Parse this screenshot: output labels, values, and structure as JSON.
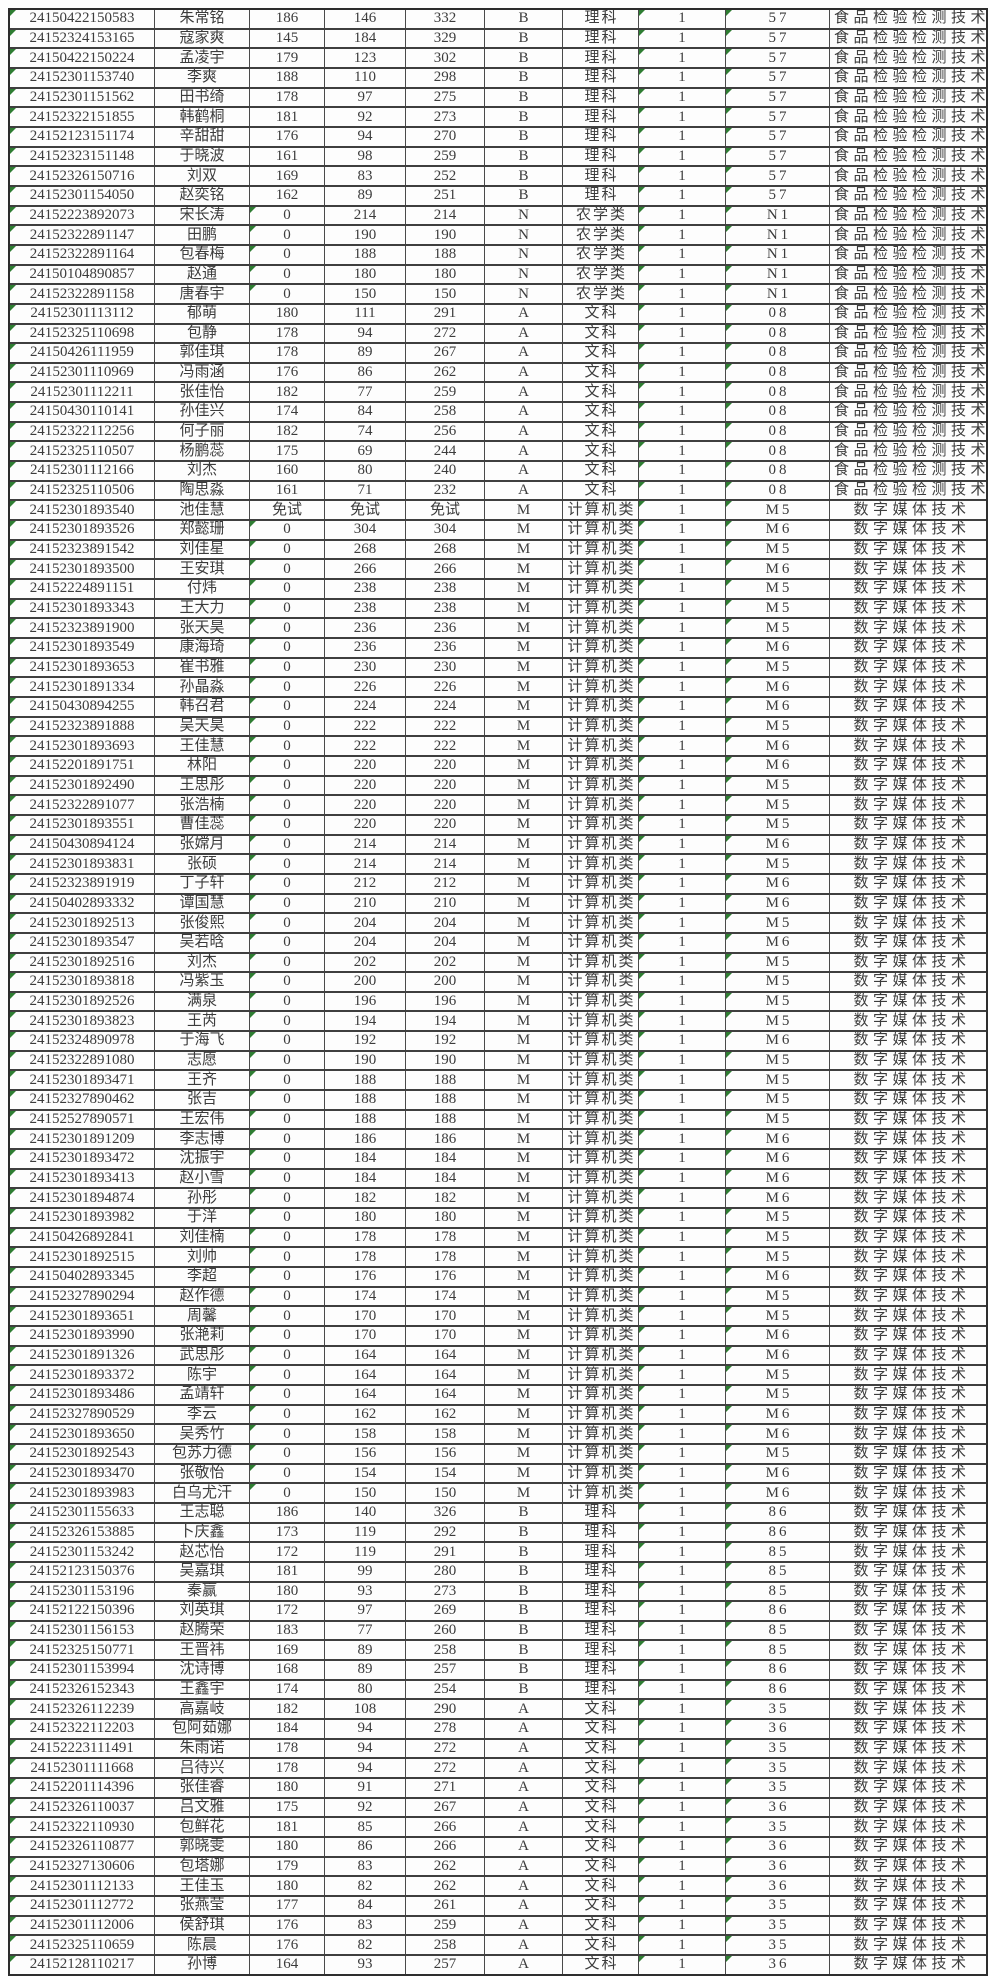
{
  "colors": {
    "corner_marker_green": "#2e7d32",
    "grid_border": "#3f3f3f",
    "text": "#3c3c3c",
    "background": "#ffffff"
  },
  "table": {
    "fields": [
      "exam_id",
      "name",
      "culture_score",
      "major_score",
      "total_score",
      "type_code",
      "subject_category",
      "plan_count",
      "major_code",
      "major_name"
    ],
    "corner_markers": {
      "always_columns": [
        0,
        7,
        8
      ],
      "zero_value_columns": [
        2
      ]
    },
    "rows": [
      [
        "24150422150583",
        "朱常铭",
        "186",
        "146",
        "332",
        "B",
        "理科",
        "1",
        "57",
        "食品检验检测技术"
      ],
      [
        "24152324153165",
        "寇家爽",
        "145",
        "184",
        "329",
        "B",
        "理科",
        "1",
        "57",
        "食品检验检测技术"
      ],
      [
        "24150422150224",
        "孟凌宇",
        "179",
        "123",
        "302",
        "B",
        "理科",
        "1",
        "57",
        "食品检验检测技术"
      ],
      [
        "24152301153740",
        "李爽",
        "188",
        "110",
        "298",
        "B",
        "理科",
        "1",
        "57",
        "食品检验检测技术"
      ],
      [
        "24152301151562",
        "田书绮",
        "178",
        "97",
        "275",
        "B",
        "理科",
        "1",
        "57",
        "食品检验检测技术"
      ],
      [
        "24152322151855",
        "韩鹤桐",
        "181",
        "92",
        "273",
        "B",
        "理科",
        "1",
        "57",
        "食品检验检测技术"
      ],
      [
        "24152123151174",
        "辛甜甜",
        "176",
        "94",
        "270",
        "B",
        "理科",
        "1",
        "57",
        "食品检验检测技术"
      ],
      [
        "24152323151148",
        "于晓波",
        "161",
        "98",
        "259",
        "B",
        "理科",
        "1",
        "57",
        "食品检验检测技术"
      ],
      [
        "24152326150716",
        "刘双",
        "169",
        "83",
        "252",
        "B",
        "理科",
        "1",
        "57",
        "食品检验检测技术"
      ],
      [
        "24152301154050",
        "赵奕铭",
        "162",
        "89",
        "251",
        "B",
        "理科",
        "1",
        "57",
        "食品检验检测技术"
      ],
      [
        "24152223892073",
        "宋长涛",
        "0",
        "214",
        "214",
        "N",
        "农学类",
        "1",
        "N1",
        "食品检验检测技术"
      ],
      [
        "24152322891147",
        "田鹏",
        "0",
        "190",
        "190",
        "N",
        "农学类",
        "1",
        "N1",
        "食品检验检测技术"
      ],
      [
        "24152322891164",
        "包春梅",
        "0",
        "188",
        "188",
        "N",
        "农学类",
        "1",
        "N1",
        "食品检验检测技术"
      ],
      [
        "24150104890857",
        "赵通",
        "0",
        "180",
        "180",
        "N",
        "农学类",
        "1",
        "N1",
        "食品检验检测技术"
      ],
      [
        "24152322891158",
        "唐春宇",
        "0",
        "150",
        "150",
        "N",
        "农学类",
        "1",
        "N1",
        "食品检验检测技术"
      ],
      [
        "24152301113112",
        "郁萌",
        "180",
        "111",
        "291",
        "A",
        "文科",
        "1",
        "08",
        "食品检验检测技术"
      ],
      [
        "24152325110698",
        "包静",
        "178",
        "94",
        "272",
        "A",
        "文科",
        "1",
        "08",
        "食品检验检测技术"
      ],
      [
        "24150426111959",
        "郭佳琪",
        "178",
        "89",
        "267",
        "A",
        "文科",
        "1",
        "08",
        "食品检验检测技术"
      ],
      [
        "24152301110969",
        "冯雨涵",
        "176",
        "86",
        "262",
        "A",
        "文科",
        "1",
        "08",
        "食品检验检测技术"
      ],
      [
        "24152301112211",
        "张佳怡",
        "182",
        "77",
        "259",
        "A",
        "文科",
        "1",
        "08",
        "食品检验检测技术"
      ],
      [
        "24150430110141",
        "孙佳兴",
        "174",
        "84",
        "258",
        "A",
        "文科",
        "1",
        "08",
        "食品检验检测技术"
      ],
      [
        "24152322112256",
        "何子丽",
        "182",
        "74",
        "256",
        "A",
        "文科",
        "1",
        "08",
        "食品检验检测技术"
      ],
      [
        "24152325110507",
        "杨鹏蕊",
        "175",
        "69",
        "244",
        "A",
        "文科",
        "1",
        "08",
        "食品检验检测技术"
      ],
      [
        "24152301112166",
        "刘杰",
        "160",
        "80",
        "240",
        "A",
        "文科",
        "1",
        "08",
        "食品检验检测技术"
      ],
      [
        "24152325110506",
        "陶思淼",
        "161",
        "71",
        "232",
        "A",
        "文科",
        "1",
        "08",
        "食品检验检测技术"
      ],
      [
        "24152301893540",
        "池佳慧",
        "免试",
        "免试",
        "免试",
        "M",
        "计算机类",
        "1",
        "M5",
        "数字媒体技术"
      ],
      [
        "24152301893526",
        "郑懿珊",
        "0",
        "304",
        "304",
        "M",
        "计算机类",
        "1",
        "M6",
        "数字媒体技术"
      ],
      [
        "24152323891542",
        "刘佳星",
        "0",
        "268",
        "268",
        "M",
        "计算机类",
        "1",
        "M5",
        "数字媒体技术"
      ],
      [
        "24152301893500",
        "王安琪",
        "0",
        "266",
        "266",
        "M",
        "计算机类",
        "1",
        "M6",
        "数字媒体技术"
      ],
      [
        "24152224891151",
        "付炜",
        "0",
        "238",
        "238",
        "M",
        "计算机类",
        "1",
        "M5",
        "数字媒体技术"
      ],
      [
        "24152301893343",
        "王大力",
        "0",
        "238",
        "238",
        "M",
        "计算机类",
        "1",
        "M5",
        "数字媒体技术"
      ],
      [
        "24152323891900",
        "张天昊",
        "0",
        "236",
        "236",
        "M",
        "计算机类",
        "1",
        "M5",
        "数字媒体技术"
      ],
      [
        "24152301893549",
        "康海琦",
        "0",
        "236",
        "236",
        "M",
        "计算机类",
        "1",
        "M6",
        "数字媒体技术"
      ],
      [
        "24152301893653",
        "崔书雅",
        "0",
        "230",
        "230",
        "M",
        "计算机类",
        "1",
        "M5",
        "数字媒体技术"
      ],
      [
        "24152301891334",
        "孙晶淼",
        "0",
        "226",
        "226",
        "M",
        "计算机类",
        "1",
        "M6",
        "数字媒体技术"
      ],
      [
        "24150430894255",
        "韩召君",
        "0",
        "224",
        "224",
        "M",
        "计算机类",
        "1",
        "M6",
        "数字媒体技术"
      ],
      [
        "24152323891888",
        "吴天昊",
        "0",
        "222",
        "222",
        "M",
        "计算机类",
        "1",
        "M5",
        "数字媒体技术"
      ],
      [
        "24152301893693",
        "王佳慧",
        "0",
        "222",
        "222",
        "M",
        "计算机类",
        "1",
        "M6",
        "数字媒体技术"
      ],
      [
        "24152201891751",
        "林阳",
        "0",
        "220",
        "220",
        "M",
        "计算机类",
        "1",
        "M6",
        "数字媒体技术"
      ],
      [
        "24152301892490",
        "王思彤",
        "0",
        "220",
        "220",
        "M",
        "计算机类",
        "1",
        "M5",
        "数字媒体技术"
      ],
      [
        "24152322891077",
        "张浩楠",
        "0",
        "220",
        "220",
        "M",
        "计算机类",
        "1",
        "M5",
        "数字媒体技术"
      ],
      [
        "24152301893551",
        "曹佳蕊",
        "0",
        "220",
        "220",
        "M",
        "计算机类",
        "1",
        "M5",
        "数字媒体技术"
      ],
      [
        "24150430894124",
        "张嫦月",
        "0",
        "214",
        "214",
        "M",
        "计算机类",
        "1",
        "M6",
        "数字媒体技术"
      ],
      [
        "24152301893831",
        "张硕",
        "0",
        "214",
        "214",
        "M",
        "计算机类",
        "1",
        "M5",
        "数字媒体技术"
      ],
      [
        "24152323891919",
        "丁子轩",
        "0",
        "212",
        "212",
        "M",
        "计算机类",
        "1",
        "M6",
        "数字媒体技术"
      ],
      [
        "24150402893332",
        "谭国慧",
        "0",
        "210",
        "210",
        "M",
        "计算机类",
        "1",
        "M6",
        "数字媒体技术"
      ],
      [
        "24152301892513",
        "张俊熙",
        "0",
        "204",
        "204",
        "M",
        "计算机类",
        "1",
        "M5",
        "数字媒体技术"
      ],
      [
        "24152301893547",
        "吴若晗",
        "0",
        "204",
        "204",
        "M",
        "计算机类",
        "1",
        "M6",
        "数字媒体技术"
      ],
      [
        "24152301892516",
        "刘杰",
        "0",
        "202",
        "202",
        "M",
        "计算机类",
        "1",
        "M5",
        "数字媒体技术"
      ],
      [
        "24152301893818",
        "冯紫玉",
        "0",
        "200",
        "200",
        "M",
        "计算机类",
        "1",
        "M5",
        "数字媒体技术"
      ],
      [
        "24152301892526",
        "满泉",
        "0",
        "196",
        "196",
        "M",
        "计算机类",
        "1",
        "M5",
        "数字媒体技术"
      ],
      [
        "24152301893823",
        "王芮",
        "0",
        "194",
        "194",
        "M",
        "计算机类",
        "1",
        "M5",
        "数字媒体技术"
      ],
      [
        "24152324890978",
        "于海飞",
        "0",
        "192",
        "192",
        "M",
        "计算机类",
        "1",
        "M6",
        "数字媒体技术"
      ],
      [
        "24152322891080",
        "志愿",
        "0",
        "190",
        "190",
        "M",
        "计算机类",
        "1",
        "M5",
        "数字媒体技术"
      ],
      [
        "24152301893471",
        "王齐",
        "0",
        "188",
        "188",
        "M",
        "计算机类",
        "1",
        "M5",
        "数字媒体技术"
      ],
      [
        "24152327890462",
        "张吉",
        "0",
        "188",
        "188",
        "M",
        "计算机类",
        "1",
        "M5",
        "数字媒体技术"
      ],
      [
        "24152527890571",
        "王宏伟",
        "0",
        "188",
        "188",
        "M",
        "计算机类",
        "1",
        "M5",
        "数字媒体技术"
      ],
      [
        "24152301891209",
        "李志博",
        "0",
        "186",
        "186",
        "M",
        "计算机类",
        "1",
        "M6",
        "数字媒体技术"
      ],
      [
        "24152301893472",
        "沈振宇",
        "0",
        "184",
        "184",
        "M",
        "计算机类",
        "1",
        "M6",
        "数字媒体技术"
      ],
      [
        "24152301893413",
        "赵小雪",
        "0",
        "184",
        "184",
        "M",
        "计算机类",
        "1",
        "M6",
        "数字媒体技术"
      ],
      [
        "24152301894874",
        "孙彤",
        "0",
        "182",
        "182",
        "M",
        "计算机类",
        "1",
        "M6",
        "数字媒体技术"
      ],
      [
        "24152301893982",
        "于洋",
        "0",
        "180",
        "180",
        "M",
        "计算机类",
        "1",
        "M5",
        "数字媒体技术"
      ],
      [
        "24150426892841",
        "刘佳楠",
        "0",
        "178",
        "178",
        "M",
        "计算机类",
        "1",
        "M5",
        "数字媒体技术"
      ],
      [
        "24152301892515",
        "刘帅",
        "0",
        "178",
        "178",
        "M",
        "计算机类",
        "1",
        "M5",
        "数字媒体技术"
      ],
      [
        "24150402893345",
        "李超",
        "0",
        "176",
        "176",
        "M",
        "计算机类",
        "1",
        "M6",
        "数字媒体技术"
      ],
      [
        "24152327890294",
        "赵作德",
        "0",
        "174",
        "174",
        "M",
        "计算机类",
        "1",
        "M5",
        "数字媒体技术"
      ],
      [
        "24152301893651",
        "周馨",
        "0",
        "170",
        "170",
        "M",
        "计算机类",
        "1",
        "M5",
        "数字媒体技术"
      ],
      [
        "24152301893990",
        "张滟莉",
        "0",
        "170",
        "170",
        "M",
        "计算机类",
        "1",
        "M6",
        "数字媒体技术"
      ],
      [
        "24152301891326",
        "武思彤",
        "0",
        "164",
        "164",
        "M",
        "计算机类",
        "1",
        "M6",
        "数字媒体技术"
      ],
      [
        "24152301893372",
        "陈宇",
        "0",
        "164",
        "164",
        "M",
        "计算机类",
        "1",
        "M5",
        "数字媒体技术"
      ],
      [
        "24152301893486",
        "孟靖轩",
        "0",
        "164",
        "164",
        "M",
        "计算机类",
        "1",
        "M5",
        "数字媒体技术"
      ],
      [
        "24152327890529",
        "李云",
        "0",
        "162",
        "162",
        "M",
        "计算机类",
        "1",
        "M6",
        "数字媒体技术"
      ],
      [
        "24152301893650",
        "吴秀竹",
        "0",
        "158",
        "158",
        "M",
        "计算机类",
        "1",
        "M6",
        "数字媒体技术"
      ],
      [
        "24152301892543",
        "包苏力德",
        "0",
        "156",
        "156",
        "M",
        "计算机类",
        "1",
        "M5",
        "数字媒体技术"
      ],
      [
        "24152301893470",
        "张敬怡",
        "0",
        "154",
        "154",
        "M",
        "计算机类",
        "1",
        "M6",
        "数字媒体技术"
      ],
      [
        "24152301893983",
        "白乌尤汗",
        "0",
        "150",
        "150",
        "M",
        "计算机类",
        "1",
        "M6",
        "数字媒体技术"
      ],
      [
        "24152301155633",
        "王志聪",
        "186",
        "140",
        "326",
        "B",
        "理科",
        "1",
        "86",
        "数字媒体技术"
      ],
      [
        "24152326153885",
        "卜庆鑫",
        "173",
        "119",
        "292",
        "B",
        "理科",
        "1",
        "86",
        "数字媒体技术"
      ],
      [
        "24152301153242",
        "赵芯怡",
        "172",
        "119",
        "291",
        "B",
        "理科",
        "1",
        "85",
        "数字媒体技术"
      ],
      [
        "24152123150376",
        "吴嘉琪",
        "181",
        "99",
        "280",
        "B",
        "理科",
        "1",
        "85",
        "数字媒体技术"
      ],
      [
        "24152301153196",
        "秦赢",
        "180",
        "93",
        "273",
        "B",
        "理科",
        "1",
        "85",
        "数字媒体技术"
      ],
      [
        "24152122150396",
        "刘英琪",
        "172",
        "97",
        "269",
        "B",
        "理科",
        "1",
        "86",
        "数字媒体技术"
      ],
      [
        "24152301156153",
        "赵腾荣",
        "183",
        "77",
        "260",
        "B",
        "理科",
        "1",
        "85",
        "数字媒体技术"
      ],
      [
        "24152325150771",
        "王晋祎",
        "169",
        "89",
        "258",
        "B",
        "理科",
        "1",
        "85",
        "数字媒体技术"
      ],
      [
        "24152301153994",
        "沈诗博",
        "168",
        "89",
        "257",
        "B",
        "理科",
        "1",
        "86",
        "数字媒体技术"
      ],
      [
        "24152326152343",
        "王鑫宇",
        "174",
        "80",
        "254",
        "B",
        "理科",
        "1",
        "86",
        "数字媒体技术"
      ],
      [
        "24152326112239",
        "高嘉岐",
        "182",
        "108",
        "290",
        "A",
        "文科",
        "1",
        "35",
        "数字媒体技术"
      ],
      [
        "24152322112203",
        "包阿茹娜",
        "184",
        "94",
        "278",
        "A",
        "文科",
        "1",
        "36",
        "数字媒体技术"
      ],
      [
        "24152223111491",
        "朱雨诺",
        "178",
        "94",
        "272",
        "A",
        "文科",
        "1",
        "35",
        "数字媒体技术"
      ],
      [
        "24152301111668",
        "吕待兴",
        "178",
        "94",
        "272",
        "A",
        "文科",
        "1",
        "35",
        "数字媒体技术"
      ],
      [
        "24152201114396",
        "张佳睿",
        "180",
        "91",
        "271",
        "A",
        "文科",
        "1",
        "35",
        "数字媒体技术"
      ],
      [
        "24152326110037",
        "吕文雅",
        "175",
        "92",
        "267",
        "A",
        "文科",
        "1",
        "36",
        "数字媒体技术"
      ],
      [
        "24152322110930",
        "包鲜花",
        "181",
        "85",
        "266",
        "A",
        "文科",
        "1",
        "35",
        "数字媒体技术"
      ],
      [
        "24152326110877",
        "郭晓雯",
        "180",
        "86",
        "266",
        "A",
        "文科",
        "1",
        "36",
        "数字媒体技术"
      ],
      [
        "24152327130606",
        "包塔娜",
        "179",
        "83",
        "262",
        "A",
        "文科",
        "1",
        "36",
        "数字媒体技术"
      ],
      [
        "24152301112133",
        "王佳玉",
        "180",
        "82",
        "262",
        "A",
        "文科",
        "1",
        "36",
        "数字媒体技术"
      ],
      [
        "24152301112772",
        "张燕莹",
        "177",
        "84",
        "261",
        "A",
        "文科",
        "1",
        "35",
        "数字媒体技术"
      ],
      [
        "24152301112006",
        "侯舒琪",
        "176",
        "83",
        "259",
        "A",
        "文科",
        "1",
        "35",
        "数字媒体技术"
      ],
      [
        "24152325110659",
        "陈晨",
        "176",
        "82",
        "258",
        "A",
        "文科",
        "1",
        "35",
        "数字媒体技术"
      ],
      [
        "24152128110217",
        "孙博",
        "164",
        "93",
        "257",
        "A",
        "文科",
        "1",
        "36",
        "数字媒体技术"
      ]
    ]
  }
}
